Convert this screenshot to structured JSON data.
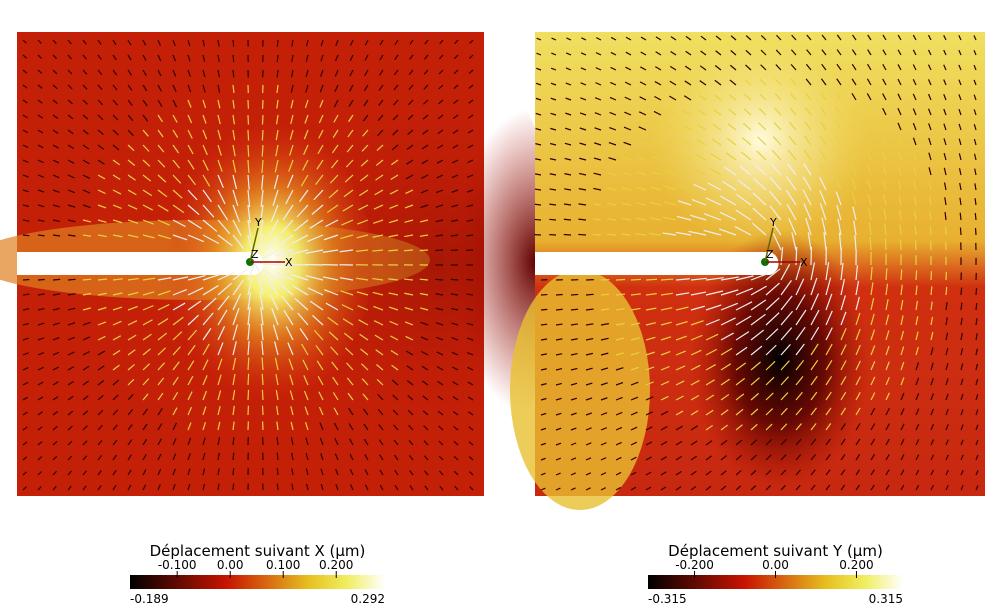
{
  "panels": [
    {
      "title": "Déplacement suivant X (µm)",
      "triad": {
        "x": "X",
        "y": "Y",
        "z": "Z"
      },
      "colorbar": {
        "min": {
          "value": -0.189,
          "label": "-0.189"
        },
        "max": {
          "value": 0.292,
          "label": "0.292"
        },
        "ticks": [
          {
            "value": -0.1,
            "label": "-0.100"
          },
          {
            "value": 0,
            "label": "0.00"
          },
          {
            "value": 0.1,
            "label": "0.100"
          },
          {
            "value": 0.2,
            "label": "0.200"
          }
        ]
      }
    },
    {
      "title": "Déplacement suivant Y (µm)",
      "triad": {
        "x": "X",
        "y": "Y",
        "z": "Z"
      },
      "colorbar": {
        "min": {
          "value": -0.315,
          "label": "-0.315"
        },
        "max": {
          "value": 0.315,
          "label": "0.315"
        },
        "ticks": [
          {
            "value": -0.2,
            "label": "-0.200"
          },
          {
            "value": 0,
            "label": "0.00"
          },
          {
            "value": 0.2,
            "label": "0.200"
          }
        ]
      }
    }
  ]
}
